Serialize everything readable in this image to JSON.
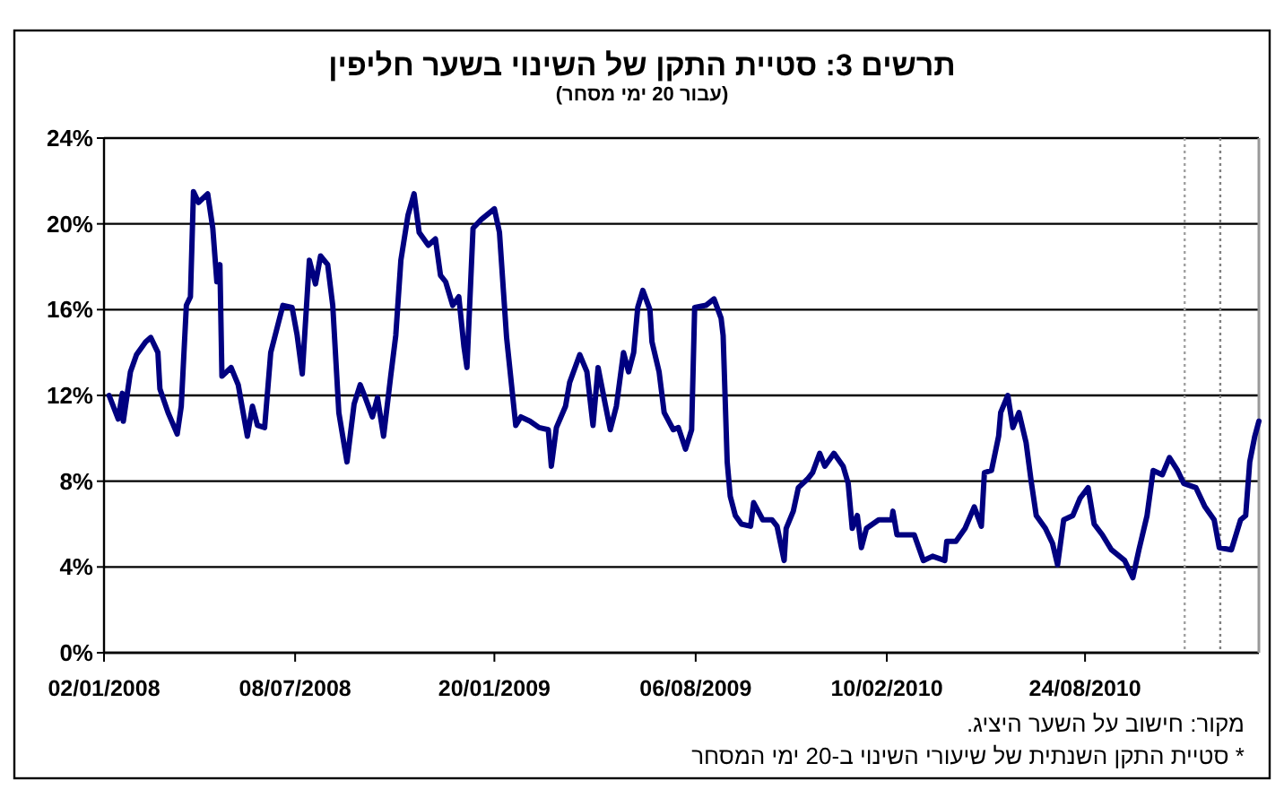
{
  "chart_data": {
    "type": "line",
    "title": "תרשים 3: סטיית התקן של השינוי בשער חליפין",
    "subtitle": "(עבור 20 ימי מסחר)",
    "annotations": [
      "מקור: חישוב על השער היציג.",
      "* סטיית התקן השנתית של שיעורי השינוי ב-20 ימי המסחר"
    ],
    "x": [
      "2008-01-07",
      "2008-01-16",
      "2008-01-20",
      "2008-01-21",
      "2008-01-28",
      "2008-02-03",
      "2008-02-12",
      "2008-02-17",
      "2008-02-24",
      "2008-02-26",
      "2008-03-05",
      "2008-03-14",
      "2008-03-18",
      "2008-03-23",
      "2008-03-27",
      "2008-03-30",
      "2008-04-04",
      "2008-04-13",
      "2008-04-18",
      "2008-04-22",
      "2008-04-25",
      "2008-04-27",
      "2008-05-06",
      "2008-05-13",
      "2008-05-22",
      "2008-05-27",
      "2008-06-01",
      "2008-06-08",
      "2008-06-14",
      "2008-06-26",
      "2008-07-05",
      "2008-07-10",
      "2008-07-15",
      "2008-07-22",
      "2008-07-28",
      "2008-08-02",
      "2008-08-09",
      "2008-08-14",
      "2008-08-20",
      "2008-08-28",
      "2008-09-04",
      "2008-09-10",
      "2008-09-15",
      "2008-09-22",
      "2008-09-27",
      "2008-10-03",
      "2008-10-10",
      "2008-10-15",
      "2008-10-20",
      "2008-10-27",
      "2008-11-02",
      "2008-11-07",
      "2008-11-16",
      "2008-11-23",
      "2008-11-28",
      "2008-12-03",
      "2008-12-10",
      "2008-12-16",
      "2008-12-21",
      "2008-12-24",
      "2008-12-30",
      "2009-01-07",
      "2009-01-20",
      "2009-01-25",
      "2009-01-29",
      "2009-02-01",
      "2009-02-10",
      "2009-02-15",
      "2009-02-24",
      "2009-03-05",
      "2009-03-14",
      "2009-03-17",
      "2009-03-22",
      "2009-03-31",
      "2009-04-04",
      "2009-04-14",
      "2009-04-21",
      "2009-04-27",
      "2009-05-02",
      "2009-05-09",
      "2009-05-14",
      "2009-05-20",
      "2009-05-27",
      "2009-06-01",
      "2009-06-06",
      "2009-06-10",
      "2009-06-15",
      "2009-06-22",
      "2009-06-24",
      "2009-07-01",
      "2009-07-06",
      "2009-07-15",
      "2009-07-20",
      "2009-07-27",
      "2009-08-02",
      "2009-08-05",
      "2009-08-16",
      "2009-08-24",
      "2009-08-31",
      "2009-09-02",
      "2009-09-06",
      "2009-09-09",
      "2009-09-14",
      "2009-09-20",
      "2009-09-29",
      "2009-10-02",
      "2009-10-11",
      "2009-10-20",
      "2009-10-25",
      "2009-11-01",
      "2009-11-03",
      "2009-11-10",
      "2009-11-15",
      "2009-11-24",
      "2009-11-29",
      "2009-12-06",
      "2009-12-11",
      "2009-12-20",
      "2009-12-29",
      "2010-01-03",
      "2010-01-07",
      "2010-01-12",
      "2010-01-16",
      "2010-01-21",
      "2010-02-02",
      "2010-02-15",
      "2010-02-16",
      "2010-02-20",
      "2010-03-09",
      "2010-03-18",
      "2010-03-27",
      "2010-04-08",
      "2010-04-10",
      "2010-04-19",
      "2010-04-28",
      "2010-05-07",
      "2010-05-14",
      "2010-05-17",
      "2010-05-24",
      "2010-05-31",
      "2010-06-02",
      "2010-06-09",
      "2010-06-14",
      "2010-06-20",
      "2010-06-27",
      "2010-07-02",
      "2010-07-07",
      "2010-07-16",
      "2010-07-23",
      "2010-07-28",
      "2010-08-03",
      "2010-08-12",
      "2010-08-19",
      "2010-08-27",
      "2010-09-02",
      "2010-09-10",
      "2010-09-19",
      "2010-10-02",
      "2010-10-10",
      "2010-10-16",
      "2010-10-24",
      "2010-10-30",
      "2010-11-08",
      "2010-11-15",
      "2010-11-23",
      "2010-11-29",
      "2010-12-11",
      "2010-12-20",
      "2010-12-29",
      "2011-01-03",
      "2011-01-15",
      "2011-01-24",
      "2011-01-29",
      "2011-02-02",
      "2011-02-07",
      "2011-02-11"
    ],
    "values": [
      12.0,
      10.9,
      12.1,
      10.8,
      13.1,
      13.9,
      14.5,
      14.7,
      14.0,
      12.3,
      11.2,
      10.2,
      11.5,
      16.2,
      16.6,
      21.5,
      21.0,
      21.4,
      19.8,
      17.3,
      18.1,
      12.9,
      13.3,
      12.5,
      10.1,
      11.5,
      10.6,
      10.5,
      14.0,
      16.2,
      16.1,
      14.8,
      13.0,
      18.3,
      17.2,
      18.5,
      18.1,
      16.2,
      11.2,
      8.9,
      11.6,
      12.5,
      11.9,
      11.0,
      11.9,
      10.1,
      12.9,
      14.8,
      18.3,
      20.4,
      21.4,
      19.6,
      19.0,
      19.3,
      17.6,
      17.3,
      16.2,
      16.6,
      14.3,
      13.3,
      19.8,
      20.2,
      20.7,
      19.6,
      16.8,
      14.7,
      10.6,
      11.0,
      10.8,
      10.5,
      10.4,
      8.7,
      10.5,
      11.5,
      12.6,
      13.9,
      13.1,
      10.6,
      13.3,
      11.6,
      10.4,
      11.5,
      14.0,
      13.1,
      14.0,
      16.1,
      16.9,
      16.0,
      14.5,
      13.1,
      11.2,
      10.4,
      10.5,
      9.5,
      10.4,
      16.1,
      16.2,
      16.5,
      15.6,
      14.8,
      8.9,
      7.3,
      6.4,
      6.0,
      5.9,
      7.0,
      6.2,
      6.2,
      5.9,
      4.3,
      5.8,
      6.6,
      7.7,
      8.1,
      8.4,
      9.3,
      8.7,
      9.3,
      8.7,
      7.9,
      5.8,
      6.4,
      4.9,
      5.8,
      6.2,
      6.2,
      6.6,
      5.5,
      5.5,
      4.3,
      4.5,
      4.3,
      5.2,
      5.2,
      5.8,
      6.8,
      5.9,
      8.4,
      8.5,
      10.1,
      11.2,
      12.0,
      10.5,
      11.2,
      9.8,
      8.0,
      6.4,
      5.8,
      5.1,
      4.1,
      6.2,
      6.4,
      7.2,
      7.7,
      6.0,
      5.5,
      4.8,
      4.3,
      3.5,
      4.8,
      6.4,
      8.5,
      8.3,
      9.1,
      8.5,
      7.9,
      7.7,
      6.8,
      6.2,
      4.9,
      4.8,
      6.2,
      6.4,
      8.9,
      10.1,
      10.8
    ],
    "color": "#000080",
    "xlim": [
      "2008-01-02",
      "2011-02-11"
    ],
    "xticks": [
      {
        "value": "2008-01-02",
        "label": "02/01/2008"
      },
      {
        "value": "2008-07-08",
        "label": "08/07/2008"
      },
      {
        "value": "2009-01-20",
        "label": "20/01/2009"
      },
      {
        "value": "2009-08-06",
        "label": "06/08/2009"
      },
      {
        "value": "2010-02-10",
        "label": "10/02/2010"
      },
      {
        "value": "2010-08-24",
        "label": "24/08/2010"
      }
    ],
    "ylim": [
      0,
      24
    ],
    "yticks": [
      {
        "value": 0,
        "label": "0%"
      },
      {
        "value": 4,
        "label": "4%"
      },
      {
        "value": 8,
        "label": "8%"
      },
      {
        "value": 12,
        "label": "12%"
      },
      {
        "value": 16,
        "label": "16%"
      },
      {
        "value": 20,
        "label": "20%"
      },
      {
        "value": 24,
        "label": "24%"
      }
    ],
    "grid": "y",
    "marker": "none",
    "line_style": "solid",
    "ref_lines": [
      {
        "axis": "x",
        "value": "2010-11-30",
        "color": "#a0a0a0",
        "line_style": "dotted"
      },
      {
        "axis": "x",
        "value": "2011-01-04",
        "color": "#808080",
        "line_style": "dotted"
      }
    ]
  }
}
